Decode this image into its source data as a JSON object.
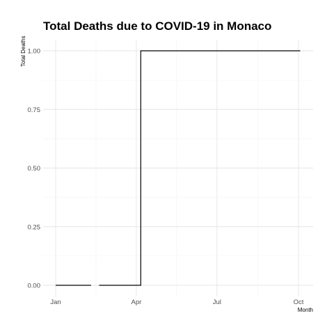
{
  "chart_data": {
    "type": "line",
    "title": "Total Deaths due to COVID-19 in Monaco",
    "xlabel": "Month",
    "ylabel": "Total Deaths",
    "x_ticks": [
      "Jan",
      "Apr",
      "Jul",
      "Oct"
    ],
    "y_ticks": [
      "0.00",
      "0.25",
      "0.50",
      "0.75",
      "1.00"
    ],
    "ylim": [
      0,
      1
    ],
    "xlim": [
      "2020-01-01",
      "2020-10-01"
    ],
    "grid": true,
    "step": true,
    "series": [
      {
        "color": "#000000",
        "segments": [
          [
            {
              "x": "2020-01-01",
              "y": 0
            },
            {
              "x": "2020-02-10",
              "y": 0
            }
          ],
          [
            {
              "x": "2020-02-19",
              "y": 0
            },
            {
              "x": "2020-04-06",
              "y": 0
            },
            {
              "x": "2020-04-06",
              "y": 1
            },
            {
              "x": "2020-10-03",
              "y": 1
            }
          ]
        ]
      }
    ]
  }
}
